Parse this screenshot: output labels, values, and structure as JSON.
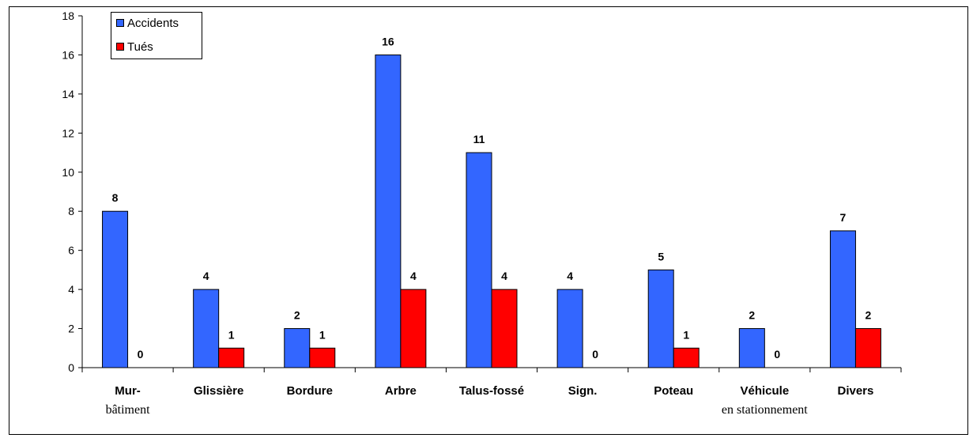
{
  "chart_data": {
    "type": "bar",
    "categories": [
      "Mur-\nbâtiment",
      "Glissière",
      "Bordure",
      "Arbre",
      "Talus-fossé",
      "Sign.",
      "Poteau",
      "Véhicule\nen stationnement",
      "Divers"
    ],
    "series": [
      {
        "name": "Accidents",
        "color": "#3366ff",
        "values": [
          8,
          4,
          2,
          16,
          11,
          4,
          5,
          2,
          7
        ]
      },
      {
        "name": "Tués",
        "color": "#ff0000",
        "values": [
          0,
          1,
          1,
          4,
          4,
          0,
          1,
          0,
          2
        ]
      }
    ],
    "ylim": [
      0,
      18
    ],
    "yticks": [
      0,
      2,
      4,
      6,
      8,
      10,
      12,
      14,
      16,
      18
    ],
    "grid": false,
    "legend": "top-left",
    "data_labels": true
  }
}
